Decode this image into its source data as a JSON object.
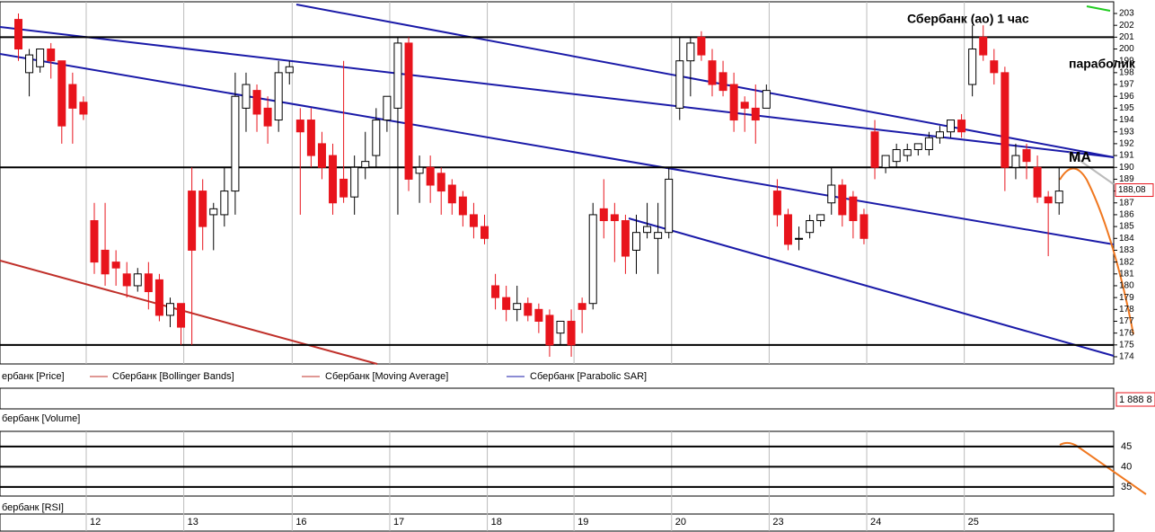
{
  "chart_data": {
    "type": "candlestick",
    "title": "Сбербанк (ао)   1 час",
    "annotations": [
      "параболик",
      "MA"
    ],
    "categories": [
      null,
      null,
      null,
      null,
      null,
      null,
      null,
      "12",
      null,
      null,
      null,
      null,
      null,
      null,
      null,
      null,
      "13",
      null,
      null,
      null,
      null,
      null,
      null,
      null,
      null,
      null,
      "16",
      null,
      null,
      null,
      null,
      null,
      null,
      null,
      null,
      "17",
      null,
      null,
      null,
      null,
      null,
      null,
      null,
      null,
      "18",
      null,
      null,
      null,
      null,
      null,
      null,
      null,
      "19",
      null,
      null,
      null,
      null,
      null,
      null,
      null,
      null,
      "20",
      null,
      null,
      null,
      null,
      null,
      null,
      null,
      null,
      "23",
      null,
      null,
      null,
      null,
      null,
      null,
      null,
      null,
      "24",
      null,
      null,
      null,
      null,
      null,
      null,
      null,
      null,
      "25",
      null,
      null,
      null,
      null,
      null,
      null,
      null,
      null
    ],
    "open": [
      202.5,
      198,
      198.5,
      200,
      199,
      197,
      195.5,
      185.5,
      183,
      182,
      181,
      180,
      181,
      180.5,
      177.5,
      178.5,
      188,
      188,
      186,
      186,
      188,
      195,
      196.5,
      195,
      194,
      198,
      194,
      194,
      192,
      191,
      189,
      187.5,
      190,
      191,
      194,
      195,
      200.5,
      189.5,
      190,
      189.5,
      188.5,
      187.5,
      186,
      185,
      180,
      179,
      178,
      178.5,
      178,
      177.5,
      176,
      177,
      178.5,
      178.5,
      186.5,
      186,
      185.5,
      183,
      184.5,
      184,
      184.5,
      195,
      199,
      201,
      199,
      198,
      197,
      195.5,
      195,
      195,
      188,
      186,
      184,
      184.5,
      185.5,
      187,
      188.5,
      187.5,
      186,
      193,
      190,
      190.5,
      191,
      191.5,
      191.5,
      192.5,
      193,
      194,
      197,
      201,
      199,
      198,
      190,
      191.5,
      190,
      187.5,
      187
    ],
    "high": [
      203,
      200,
      200,
      200.5,
      199,
      198,
      196,
      187,
      187,
      183,
      182,
      181.5,
      182,
      181,
      179,
      178.5,
      190,
      189,
      187,
      190,
      198,
      198,
      197,
      196,
      199,
      199,
      195,
      195,
      193,
      192,
      199,
      191,
      193,
      195,
      196,
      201,
      201,
      191,
      191,
      190,
      189,
      188,
      187,
      186,
      181,
      180,
      180,
      179,
      178.5,
      178,
      177,
      178,
      179,
      187,
      189,
      187,
      186,
      186,
      187,
      187,
      190,
      201,
      201,
      201.5,
      200,
      199,
      198,
      196,
      197,
      197,
      189,
      186.5,
      185,
      186,
      186,
      190,
      189,
      188,
      186.5,
      194,
      191,
      192,
      192,
      192,
      193,
      193.5,
      194,
      194.5,
      202,
      202,
      200,
      198.5,
      192,
      192,
      191,
      188,
      190
    ],
    "low": [
      199,
      196,
      198,
      197.5,
      192,
      192,
      194,
      181,
      180,
      180,
      179,
      179.5,
      178,
      177,
      176.5,
      175,
      175,
      183,
      183,
      185,
      186,
      193,
      193,
      192,
      193,
      197,
      186,
      190,
      189,
      186,
      187,
      186,
      189,
      190,
      193,
      186,
      188,
      187,
      187,
      186,
      186,
      185,
      184,
      183.5,
      178,
      177,
      177,
      177,
      176,
      174,
      175,
      174,
      176,
      178,
      184,
      182,
      181,
      181,
      184,
      181,
      184,
      194,
      196,
      199,
      196,
      196,
      193,
      193,
      192,
      195,
      185,
      183,
      183,
      184,
      185,
      186,
      185,
      184,
      183.5,
      189,
      189.5,
      190,
      190.5,
      191,
      191,
      192,
      192.5,
      192.5,
      196,
      199,
      197,
      188,
      189,
      189,
      187,
      182.5,
      186
    ],
    "close": [
      200,
      199.5,
      200,
      199,
      193.5,
      195,
      194.5,
      182,
      181,
      181.5,
      180,
      181,
      179.5,
      177.5,
      178.5,
      176.5,
      183,
      185,
      186.5,
      188,
      196,
      197,
      194.5,
      193.5,
      198,
      198.5,
      193,
      191,
      190,
      187,
      187.5,
      190,
      190.5,
      194,
      196,
      200.5,
      189,
      190,
      188.5,
      188,
      187,
      186,
      185,
      184,
      179,
      178,
      178.5,
      177.5,
      177,
      175,
      177,
      175,
      178,
      186,
      185.5,
      185.5,
      182.5,
      184.5,
      185,
      184.5,
      189,
      199,
      200.5,
      199.5,
      197,
      196.5,
      194,
      195,
      194,
      196.5,
      186,
      183.5,
      184,
      185.5,
      186,
      188.5,
      186,
      185.5,
      184,
      190,
      191,
      191.5,
      191.5,
      192,
      192.5,
      193,
      194,
      193,
      200,
      199.5,
      198,
      190,
      191,
      190.5,
      187.5,
      187,
      188
    ],
    "ylim": [
      174,
      203
    ],
    "yticks": [
      174,
      175,
      176,
      177,
      178,
      179,
      180,
      181,
      182,
      183,
      184,
      185,
      186,
      187,
      188,
      189,
      190,
      191,
      192,
      193,
      194,
      195,
      196,
      197,
      198,
      199,
      200,
      201,
      202,
      203
    ],
    "levels": [
      201,
      190,
      175
    ],
    "last_price": {
      "value": 188.08,
      "label": "188,08"
    },
    "up_color": "#ffffff",
    "down_color": "#e8141c",
    "legend": [
      "ербанк [Price]",
      "Сбербанк [Bollinger Bands]",
      "Сбербанк [Moving Average]",
      "Сбербанк [Parabolic SAR]"
    ],
    "volume_label": "бербанк [Volume]",
    "volume_last": "1 888 8",
    "rsi_label": "бербанк [RSI]",
    "rsi_ylim": [
      33.2,
      48.3
    ],
    "rsi_yticks": [
      35,
      40,
      45
    ]
  }
}
